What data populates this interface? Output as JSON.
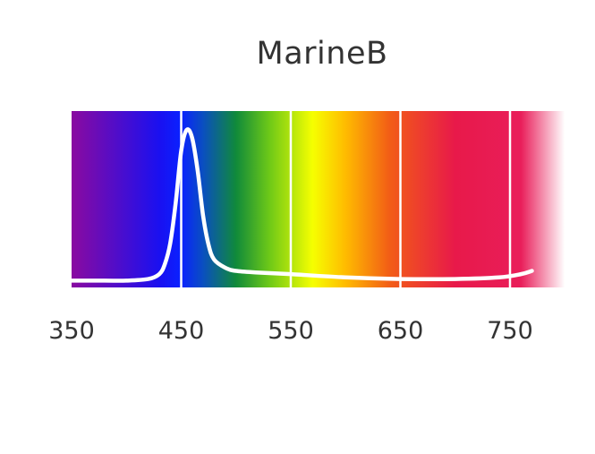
{
  "chart_data": {
    "type": "line",
    "title": "MarineB",
    "xlabel": "",
    "ylabel": "",
    "xlim": [
      350,
      800
    ],
    "ylim": [
      0,
      1
    ],
    "x_ticks": [
      "350",
      "450",
      "550",
      "650",
      "750"
    ],
    "x_tick_values": [
      350,
      450,
      550,
      650,
      750
    ],
    "grid": true,
    "background": "visible-spectrum-gradient",
    "line_color": "#ffffff",
    "series": [
      {
        "x": [
          350,
          380,
          400,
          420,
          430,
          435,
          440,
          445,
          450,
          455,
          460,
          465,
          470,
          475,
          480,
          490,
          500,
          520,
          550,
          600,
          650,
          700,
          740,
          760,
          770
        ],
        "y": [
          0.02,
          0.02,
          0.02,
          0.03,
          0.06,
          0.12,
          0.25,
          0.5,
          0.82,
          0.95,
          0.9,
          0.7,
          0.42,
          0.24,
          0.15,
          0.1,
          0.08,
          0.07,
          0.06,
          0.04,
          0.03,
          0.03,
          0.04,
          0.06,
          0.08
        ]
      }
    ],
    "spectrum_colors": [
      {
        "nm": 350,
        "color": "#8a0aa0"
      },
      {
        "nm": 430,
        "color": "#1a10f0"
      },
      {
        "nm": 450,
        "color": "#0a22ff"
      },
      {
        "nm": 470,
        "color": "#0a4fc0"
      },
      {
        "nm": 500,
        "color": "#108a3a"
      },
      {
        "nm": 530,
        "color": "#6cc818"
      },
      {
        "nm": 570,
        "color": "#f6ff00"
      },
      {
        "nm": 600,
        "color": "#ffbb00"
      },
      {
        "nm": 640,
        "color": "#f25d16"
      },
      {
        "nm": 700,
        "color": "#e8194a"
      },
      {
        "nm": 760,
        "color": "#e91e5a"
      },
      {
        "nm": 800,
        "color": "#ffffff"
      }
    ]
  }
}
